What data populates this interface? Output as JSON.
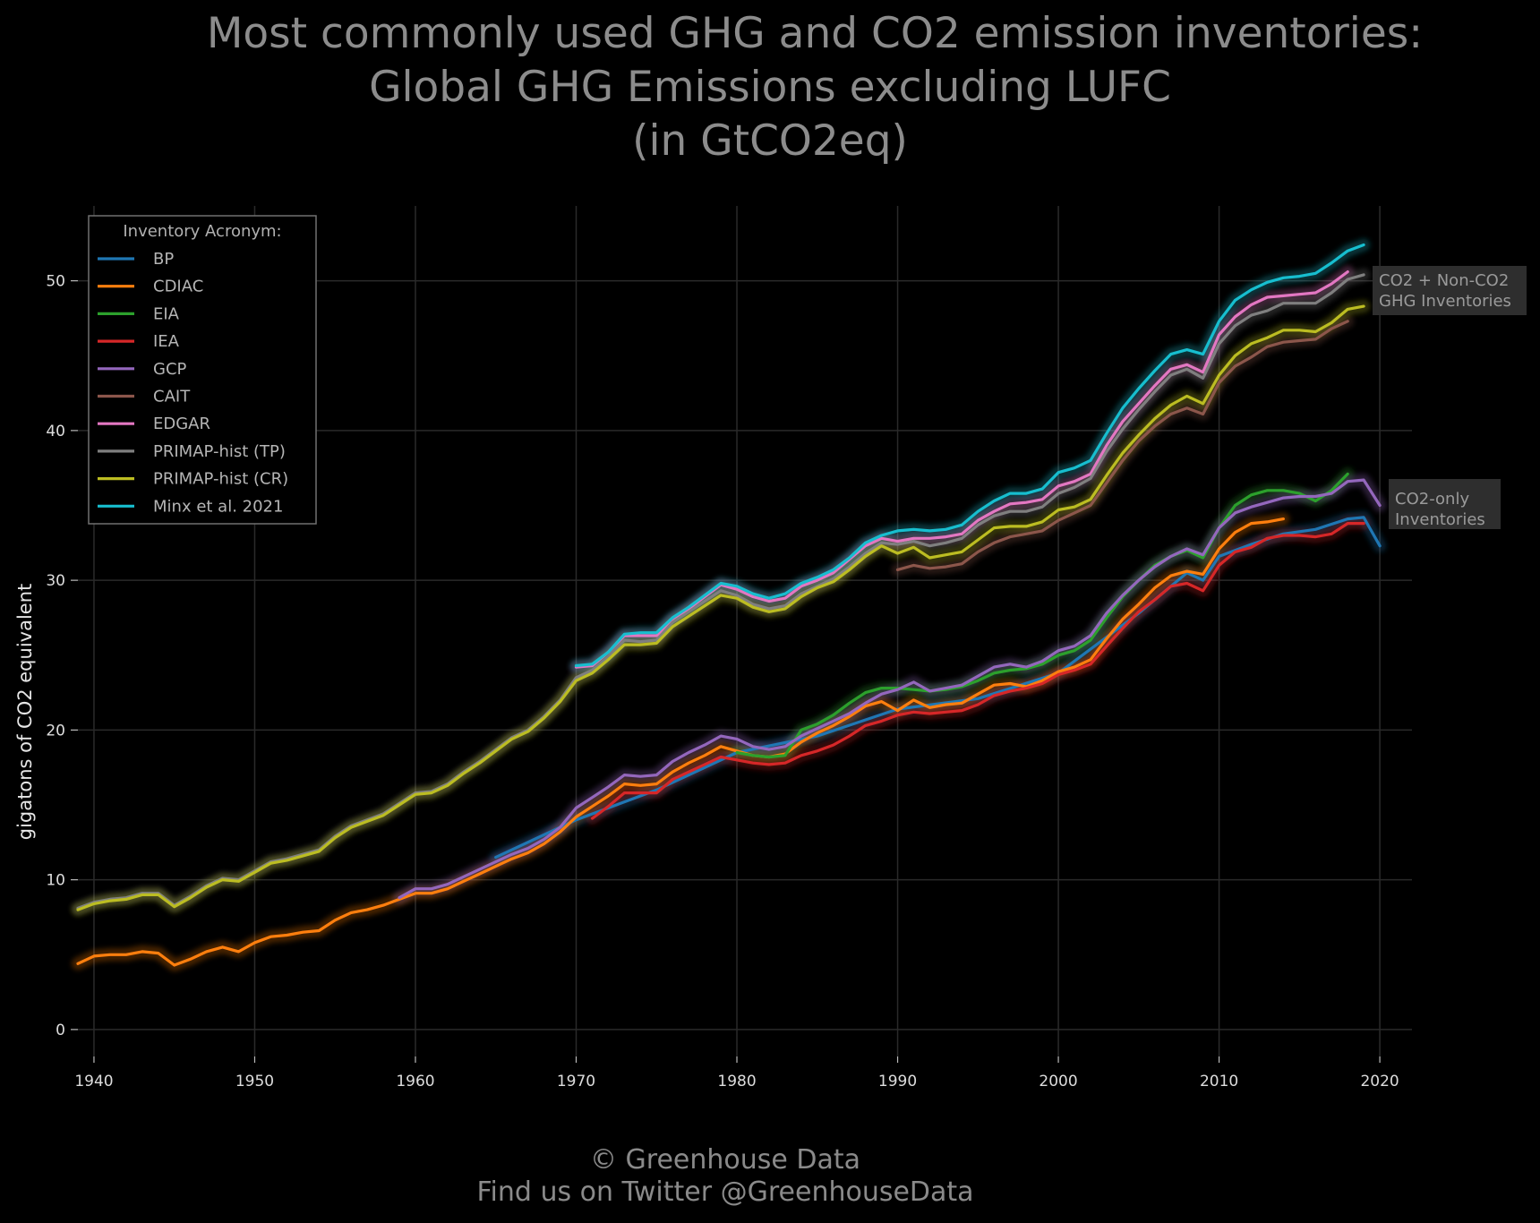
{
  "title": {
    "line1": "Most commonly used GHG and CO2 emission inventories:",
    "line2": "Global GHG Emissions excluding LUFC",
    "line3": "(in GtCO2eq)"
  },
  "footer": {
    "line1": "© Greenhouse Data",
    "line2": "Find us on Twitter @GreenhouseData"
  },
  "chart_data": {
    "type": "line",
    "xlabel": "",
    "ylabel": "gigatons of CO2 equivalent",
    "xlim": [
      1939,
      2022
    ],
    "ylim": [
      -1.8,
      55
    ],
    "xticks": [
      1940,
      1950,
      1960,
      1970,
      1980,
      1990,
      2000,
      2010,
      2020
    ],
    "yticks": [
      0,
      10,
      20,
      30,
      40,
      50
    ],
    "grid": true,
    "legend": {
      "title": "Inventory Acronym:",
      "placement": "top-left"
    },
    "annotations": [
      {
        "lines": [
          "CO2 + Non-CO2",
          "GHG Inventories"
        ]
      },
      {
        "lines": [
          "CO2-only",
          "Inventories"
        ]
      }
    ],
    "series": [
      {
        "name": "BP",
        "color": "#1f77b4",
        "x": [
          1965,
          1970,
          1975,
          1980,
          1985,
          1990,
          1995,
          2000,
          2005,
          2008,
          2009,
          2010,
          2012,
          2014,
          2016,
          2018,
          2019,
          2020
        ],
        "y": [
          11.5,
          14.0,
          16.0,
          18.5,
          19.6,
          21.4,
          22.1,
          23.8,
          27.8,
          30.5,
          30.0,
          31.6,
          32.4,
          33.1,
          33.4,
          34.1,
          34.2,
          32.3
        ]
      },
      {
        "name": "CDIAC",
        "color": "#ff7f0e",
        "x": [
          1939,
          1940,
          1941,
          1942,
          1943,
          1944,
          1945,
          1946,
          1947,
          1948,
          1949,
          1950,
          1951,
          1952,
          1953,
          1954,
          1955,
          1956,
          1957,
          1958,
          1959,
          1960,
          1961,
          1962,
          1963,
          1964,
          1965,
          1966,
          1967,
          1968,
          1969,
          1970,
          1971,
          1972,
          1973,
          1974,
          1975,
          1976,
          1977,
          1978,
          1979,
          1980,
          1981,
          1982,
          1983,
          1984,
          1985,
          1986,
          1987,
          1988,
          1989,
          1990,
          1991,
          1992,
          1993,
          1994,
          1995,
          1996,
          1997,
          1998,
          1999,
          2000,
          2001,
          2002,
          2003,
          2004,
          2005,
          2006,
          2007,
          2008,
          2009,
          2010,
          2011,
          2012,
          2013,
          2014
        ],
        "y": [
          4.4,
          4.9,
          5.0,
          5.0,
          5.2,
          5.1,
          4.3,
          4.7,
          5.2,
          5.5,
          5.2,
          5.8,
          6.2,
          6.3,
          6.5,
          6.6,
          7.3,
          7.8,
          8.0,
          8.3,
          8.7,
          9.1,
          9.1,
          9.4,
          9.9,
          10.4,
          10.9,
          11.4,
          11.8,
          12.4,
          13.2,
          14.2,
          14.9,
          15.6,
          16.4,
          16.3,
          16.4,
          17.2,
          17.8,
          18.3,
          18.9,
          18.6,
          18.3,
          18.2,
          18.4,
          19.2,
          19.8,
          20.3,
          20.9,
          21.6,
          21.9,
          21.3,
          22.0,
          21.5,
          21.7,
          21.8,
          22.4,
          23.0,
          23.1,
          22.9,
          23.3,
          23.9,
          24.2,
          24.7,
          26.1,
          27.4,
          28.4,
          29.5,
          30.3,
          30.6,
          30.4,
          32.1,
          33.2,
          33.8,
          33.9,
          34.1
        ]
      },
      {
        "name": "EIA",
        "color": "#2ca02c",
        "x": [
          1980,
          1981,
          1982,
          1983,
          1984,
          1985,
          1986,
          1987,
          1988,
          1989,
          1990,
          1991,
          1992,
          1993,
          1994,
          1995,
          1996,
          1997,
          1998,
          1999,
          2000,
          2001,
          2002,
          2003,
          2004,
          2005,
          2006,
          2007,
          2008,
          2009,
          2010,
          2011,
          2012,
          2013,
          2014,
          2015,
          2016,
          2017,
          2018
        ],
        "y": [
          18.5,
          18.3,
          18.2,
          18.3,
          20.0,
          20.4,
          21.0,
          21.8,
          22.5,
          22.8,
          22.8,
          22.7,
          22.6,
          22.7,
          22.9,
          23.3,
          23.8,
          24.0,
          24.1,
          24.4,
          25.0,
          25.3,
          26.0,
          27.5,
          28.9,
          30.0,
          31.0,
          31.6,
          32.0,
          31.5,
          33.5,
          35.0,
          35.7,
          36.0,
          36.0,
          35.8,
          35.3,
          36.0,
          37.1
        ]
      },
      {
        "name": "IEA",
        "color": "#d62728",
        "x": [
          1971,
          1972,
          1973,
          1974,
          1975,
          1976,
          1977,
          1978,
          1979,
          1980,
          1981,
          1982,
          1983,
          1984,
          1985,
          1986,
          1987,
          1988,
          1989,
          1990,
          1991,
          1992,
          1993,
          1994,
          1995,
          1996,
          1997,
          1998,
          1999,
          2000,
          2001,
          2002,
          2003,
          2004,
          2005,
          2006,
          2007,
          2008,
          2009,
          2010,
          2011,
          2012,
          2013,
          2014,
          2015,
          2016,
          2017,
          2018,
          2019
        ],
        "y": [
          14.1,
          14.9,
          15.8,
          15.8,
          15.8,
          16.7,
          17.2,
          17.7,
          18.2,
          18.0,
          17.8,
          17.7,
          17.8,
          18.3,
          18.6,
          19.0,
          19.6,
          20.3,
          20.6,
          21.0,
          21.2,
          21.1,
          21.2,
          21.3,
          21.7,
          22.3,
          22.6,
          22.8,
          23.1,
          23.7,
          24.0,
          24.4,
          25.6,
          26.8,
          27.9,
          28.7,
          29.6,
          29.8,
          29.3,
          31.0,
          31.9,
          32.2,
          32.8,
          33.0,
          33.0,
          32.9,
          33.1,
          33.8,
          33.8
        ]
      },
      {
        "name": "GCP",
        "color": "#9467bd",
        "x": [
          1959,
          1960,
          1961,
          1962,
          1963,
          1964,
          1965,
          1966,
          1967,
          1968,
          1969,
          1970,
          1971,
          1972,
          1973,
          1974,
          1975,
          1976,
          1977,
          1978,
          1979,
          1980,
          1981,
          1982,
          1983,
          1984,
          1985,
          1986,
          1987,
          1988,
          1989,
          1990,
          1991,
          1992,
          1993,
          1994,
          1995,
          1996,
          1997,
          1998,
          1999,
          2000,
          2001,
          2002,
          2003,
          2004,
          2005,
          2006,
          2007,
          2008,
          2009,
          2010,
          2011,
          2012,
          2013,
          2014,
          2015,
          2016,
          2017,
          2018,
          2019,
          2020
        ],
        "y": [
          8.8,
          9.4,
          9.4,
          9.7,
          10.2,
          10.7,
          11.2,
          11.7,
          12.1,
          12.7,
          13.5,
          14.8,
          15.5,
          16.2,
          17.0,
          16.9,
          17.0,
          17.9,
          18.5,
          19.0,
          19.6,
          19.4,
          18.9,
          18.7,
          18.9,
          19.6,
          20.1,
          20.6,
          21.1,
          21.8,
          22.4,
          22.7,
          23.2,
          22.6,
          22.8,
          23.0,
          23.6,
          24.2,
          24.4,
          24.2,
          24.6,
          25.3,
          25.6,
          26.3,
          27.8,
          29.0,
          30.0,
          30.9,
          31.6,
          32.1,
          31.7,
          33.5,
          34.5,
          34.9,
          35.2,
          35.5,
          35.6,
          35.6,
          35.8,
          36.6,
          36.7,
          35.0
        ]
      },
      {
        "name": "CAIT",
        "color": "#8c564b",
        "x": [
          1990,
          1991,
          1992,
          1993,
          1994,
          1995,
          1996,
          1997,
          1998,
          1999,
          2000,
          2001,
          2002,
          2003,
          2004,
          2005,
          2006,
          2007,
          2008,
          2009,
          2010,
          2011,
          2012,
          2013,
          2014,
          2015,
          2016,
          2017,
          2018
        ],
        "y": [
          30.7,
          31.0,
          30.8,
          30.9,
          31.1,
          31.9,
          32.5,
          32.9,
          33.1,
          33.3,
          34.0,
          34.5,
          35.0,
          36.5,
          38.0,
          39.3,
          40.3,
          41.1,
          41.5,
          41.1,
          43.2,
          44.3,
          44.9,
          45.6,
          45.9,
          46.0,
          46.1,
          46.8,
          47.3
        ]
      },
      {
        "name": "EDGAR",
        "color": "#e377c2",
        "x": [
          1970,
          1971,
          1972,
          1973,
          1974,
          1975,
          1976,
          1977,
          1978,
          1979,
          1980,
          1981,
          1982,
          1983,
          1984,
          1985,
          1986,
          1987,
          1988,
          1989,
          1990,
          1991,
          1992,
          1993,
          1994,
          1995,
          1996,
          1997,
          1998,
          1999,
          2000,
          2001,
          2002,
          2003,
          2004,
          2005,
          2006,
          2007,
          2008,
          2009,
          2010,
          2011,
          2012,
          2013,
          2014,
          2015,
          2016,
          2017,
          2018
        ],
        "y": [
          24.2,
          24.3,
          25.2,
          26.3,
          26.3,
          26.3,
          27.4,
          28.1,
          28.9,
          29.7,
          29.4,
          28.9,
          28.6,
          28.8,
          29.6,
          30.0,
          30.5,
          31.4,
          32.3,
          32.8,
          32.6,
          32.8,
          32.8,
          32.9,
          33.1,
          34.0,
          34.6,
          35.1,
          35.2,
          35.4,
          36.3,
          36.6,
          37.1,
          39.0,
          40.6,
          41.8,
          43.0,
          44.1,
          44.4,
          43.9,
          46.4,
          47.6,
          48.4,
          48.9,
          49.0,
          49.1,
          49.2,
          49.8,
          50.6
        ]
      },
      {
        "name": "PRIMAP-hist (TP)",
        "color": "#7f7f7f",
        "x": [
          1939,
          1940,
          1941,
          1942,
          1943,
          1944,
          1945,
          1946,
          1947,
          1948,
          1949,
          1950,
          1951,
          1952,
          1953,
          1954,
          1955,
          1956,
          1957,
          1958,
          1959,
          1960,
          1961,
          1962,
          1963,
          1964,
          1965,
          1966,
          1967,
          1968,
          1969,
          1970,
          1971,
          1972,
          1973,
          1974,
          1975,
          1976,
          1977,
          1978,
          1979,
          1980,
          1981,
          1982,
          1983,
          1984,
          1985,
          1986,
          1987,
          1988,
          1989,
          1990,
          1991,
          1992,
          1993,
          1994,
          1995,
          1996,
          1997,
          1998,
          1999,
          2000,
          2001,
          2002,
          2003,
          2004,
          2005,
          2006,
          2007,
          2008,
          2009,
          2010,
          2011,
          2012,
          2013,
          2014,
          2015,
          2016,
          2017,
          2018,
          2019
        ],
        "y": [
          8.1,
          8.5,
          8.7,
          8.8,
          9.1,
          9.1,
          8.3,
          8.9,
          9.6,
          10.1,
          10.0,
          10.6,
          11.2,
          11.4,
          11.7,
          12.0,
          12.9,
          13.6,
          14.0,
          14.4,
          15.1,
          15.8,
          15.9,
          16.4,
          17.2,
          17.9,
          18.7,
          19.5,
          20.0,
          20.9,
          22.0,
          23.5,
          24.0,
          24.9,
          26.0,
          25.9,
          26.0,
          27.2,
          27.9,
          28.6,
          29.3,
          29.0,
          28.4,
          28.1,
          28.3,
          29.1,
          29.6,
          30.1,
          30.9,
          31.8,
          32.5,
          32.4,
          32.6,
          32.3,
          32.5,
          32.8,
          33.7,
          34.3,
          34.6,
          34.6,
          34.9,
          35.8,
          36.2,
          36.8,
          38.6,
          40.1,
          41.4,
          42.6,
          43.7,
          44.1,
          43.5,
          45.8,
          47.0,
          47.7,
          48.0,
          48.5,
          48.5,
          48.5,
          49.2,
          50.1,
          50.4
        ]
      },
      {
        "name": "PRIMAP-hist (CR)",
        "color": "#bcbd22",
        "x": [
          1939,
          1940,
          1941,
          1942,
          1943,
          1944,
          1945,
          1946,
          1947,
          1948,
          1949,
          1950,
          1951,
          1952,
          1953,
          1954,
          1955,
          1956,
          1957,
          1958,
          1959,
          1960,
          1961,
          1962,
          1963,
          1964,
          1965,
          1966,
          1967,
          1968,
          1969,
          1970,
          1971,
          1972,
          1973,
          1974,
          1975,
          1976,
          1977,
          1978,
          1979,
          1980,
          1981,
          1982,
          1983,
          1984,
          1985,
          1986,
          1987,
          1988,
          1989,
          1990,
          1991,
          1992,
          1993,
          1994,
          1995,
          1996,
          1997,
          1998,
          1999,
          2000,
          2001,
          2002,
          2003,
          2004,
          2005,
          2006,
          2007,
          2008,
          2009,
          2010,
          2011,
          2012,
          2013,
          2014,
          2015,
          2016,
          2017,
          2018,
          2019
        ],
        "y": [
          8.0,
          8.4,
          8.6,
          8.7,
          9.0,
          9.0,
          8.2,
          8.8,
          9.5,
          10.0,
          9.9,
          10.5,
          11.1,
          11.3,
          11.6,
          11.9,
          12.8,
          13.5,
          13.9,
          14.3,
          15.0,
          15.7,
          15.8,
          16.3,
          17.1,
          17.8,
          18.6,
          19.4,
          19.9,
          20.8,
          21.9,
          23.3,
          23.8,
          24.7,
          25.7,
          25.7,
          25.8,
          26.9,
          27.6,
          28.3,
          29.0,
          28.8,
          28.2,
          27.9,
          28.1,
          28.9,
          29.5,
          29.9,
          30.7,
          31.6,
          32.3,
          31.8,
          32.2,
          31.5,
          31.7,
          31.9,
          32.7,
          33.5,
          33.6,
          33.6,
          33.9,
          34.7,
          34.9,
          35.4,
          37.0,
          38.5,
          39.7,
          40.8,
          41.7,
          42.3,
          41.8,
          43.7,
          45.0,
          45.8,
          46.2,
          46.7,
          46.7,
          46.6,
          47.2,
          48.1,
          48.3
        ]
      },
      {
        "name": "Minx et al. 2021",
        "color": "#17becf",
        "x": [
          1970,
          1971,
          1972,
          1973,
          1974,
          1975,
          1976,
          1977,
          1978,
          1979,
          1980,
          1981,
          1982,
          1983,
          1984,
          1985,
          1986,
          1987,
          1988,
          1989,
          1990,
          1991,
          1992,
          1993,
          1994,
          1995,
          1996,
          1997,
          1998,
          1999,
          2000,
          2001,
          2002,
          2003,
          2004,
          2005,
          2006,
          2007,
          2008,
          2009,
          2010,
          2011,
          2012,
          2013,
          2014,
          2015,
          2016,
          2017,
          2018,
          2019
        ],
        "y": [
          24.3,
          24.4,
          25.2,
          26.4,
          26.5,
          26.5,
          27.5,
          28.2,
          29.0,
          29.8,
          29.6,
          29.1,
          28.8,
          29.1,
          29.8,
          30.2,
          30.7,
          31.5,
          32.5,
          33.0,
          33.3,
          33.4,
          33.3,
          33.4,
          33.7,
          34.6,
          35.3,
          35.8,
          35.8,
          36.1,
          37.2,
          37.5,
          38.0,
          39.8,
          41.5,
          42.8,
          44.0,
          45.1,
          45.4,
          45.1,
          47.3,
          48.7,
          49.4,
          49.9,
          50.2,
          50.3,
          50.5,
          51.2,
          52.0,
          52.4
        ]
      }
    ]
  }
}
